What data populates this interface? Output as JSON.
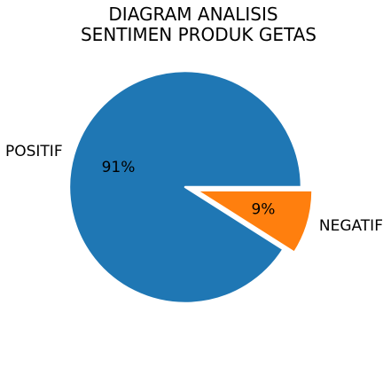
{
  "chart_data": {
    "type": "pie",
    "title_lines": [
      "DIAGRAM ANALISIS",
      "SENTIMEN PRODUK GETAS"
    ],
    "slices": [
      {
        "label": "POSITIF",
        "value": 91,
        "pct_label": "91%",
        "color": "#1f77b4",
        "exploded": false
      },
      {
        "label": "NEGATIF",
        "value": 9,
        "pct_label": "9%",
        "color": "#ff7f0e",
        "exploded": true
      }
    ],
    "start_angle_deg": 0,
    "direction": "counterclockwise",
    "legend": "none"
  }
}
